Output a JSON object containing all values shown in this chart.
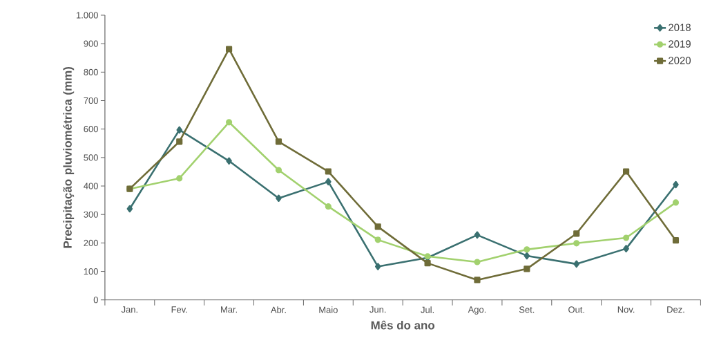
{
  "chart_data": {
    "type": "line",
    "xlabel": "Mês do ano",
    "ylabel": "Precipitação pluviométrica (mm)",
    "categories": [
      "Jan.",
      "Fev.",
      "Mar.",
      "Abr.",
      "Maio",
      "Jun.",
      "Jul.",
      "Ago.",
      "Set.",
      "Out.",
      "Nov.",
      "Dez."
    ],
    "series": [
      {
        "name": "2018",
        "color": "#3a7070",
        "marker": "diamond",
        "values": [
          320,
          597,
          488,
          357,
          415,
          117,
          148,
          228,
          155,
          126,
          180,
          405
        ]
      },
      {
        "name": "2019",
        "color": "#a2d16e",
        "marker": "circle",
        "values": [
          390,
          427,
          624,
          456,
          328,
          211,
          153,
          133,
          177,
          199,
          218,
          342
        ]
      },
      {
        "name": "2020",
        "color": "#6f6c38",
        "marker": "square",
        "values": [
          390,
          556,
          881,
          556,
          451,
          257,
          129,
          70,
          109,
          233,
          451,
          209
        ]
      }
    ],
    "ylim": [
      0,
      1000
    ],
    "yticks": [
      0,
      100,
      200,
      300,
      400,
      500,
      600,
      700,
      800,
      900,
      {
        "value": 1000,
        "label": "1.000"
      }
    ],
    "grid": false,
    "legend": "top right",
    "line_style": "solid"
  }
}
